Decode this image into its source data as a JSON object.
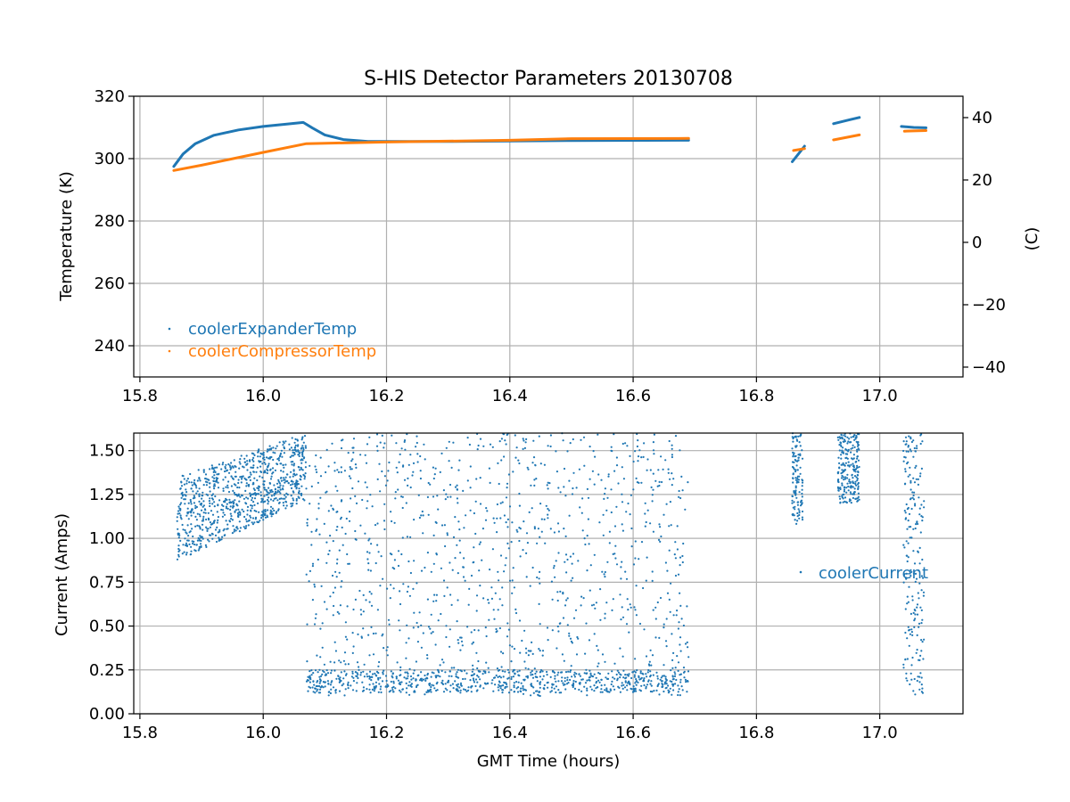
{
  "chart_data": [
    {
      "type": "scatter",
      "title": "S-HIS Detector Parameters 20130708",
      "xlabel": "",
      "ylabel": "Temperature (K)",
      "y2label": "(C)",
      "xlim": [
        15.79,
        17.135
      ],
      "ylim": [
        230,
        320
      ],
      "y2lim": [
        -43.15,
        46.85
      ],
      "xticks": [
        15.8,
        16.0,
        16.2,
        16.4,
        16.6,
        16.8,
        17.0
      ],
      "xtick_labels": [
        "15.8",
        "16.0",
        "16.2",
        "16.4",
        "16.6",
        "16.8",
        "17.0"
      ],
      "yticks": [
        240,
        260,
        280,
        300,
        320
      ],
      "ytick_labels": [
        "240",
        "260",
        "280",
        "300",
        "320"
      ],
      "y2ticks": [
        -40,
        -20,
        0,
        20,
        40
      ],
      "y2tick_labels": [
        "−40",
        "−20",
        "0",
        "20",
        "40"
      ],
      "grid": true,
      "legend": "lower-left",
      "series": [
        {
          "name": "coolerExpanderTemp",
          "color": "#1f77b4",
          "segments": [
            [
              [
                15.855,
                297.5
              ],
              [
                15.87,
                301.5
              ],
              [
                15.89,
                304.8
              ],
              [
                15.92,
                307.5
              ],
              [
                15.96,
                309.2
              ],
              [
                16.0,
                310.3
              ],
              [
                16.04,
                311.1
              ],
              [
                16.065,
                311.6
              ],
              [
                16.08,
                309.8
              ],
              [
                16.1,
                307.6
              ],
              [
                16.13,
                306.1
              ],
              [
                16.17,
                305.5
              ],
              [
                16.3,
                305.5
              ],
              [
                16.5,
                305.8
              ],
              [
                16.69,
                305.9
              ]
            ],
            [
              [
                16.858,
                299.0
              ],
              [
                16.868,
                301.5
              ],
              [
                16.878,
                304.0
              ]
            ],
            [
              [
                16.925,
                311.2
              ],
              [
                16.95,
                312.4
              ],
              [
                16.967,
                313.2
              ]
            ],
            [
              [
                17.035,
                310.3
              ],
              [
                17.055,
                310.0
              ],
              [
                17.075,
                309.9
              ]
            ]
          ]
        },
        {
          "name": "coolerCompressorTemp",
          "color": "#ff7f0e",
          "segments": [
            [
              [
                15.855,
                296.2
              ],
              [
                15.9,
                297.9
              ],
              [
                16.0,
                302.0
              ],
              [
                16.07,
                304.8
              ],
              [
                16.2,
                305.3
              ],
              [
                16.4,
                305.9
              ],
              [
                16.5,
                306.4
              ],
              [
                16.69,
                306.5
              ]
            ],
            [
              [
                16.86,
                302.6
              ],
              [
                16.878,
                303.2
              ]
            ],
            [
              [
                16.925,
                306.0
              ],
              [
                16.967,
                307.6
              ]
            ],
            [
              [
                17.04,
                308.8
              ],
              [
                17.075,
                309.0
              ]
            ]
          ]
        }
      ]
    },
    {
      "type": "scatter",
      "title": "",
      "xlabel": "GMT Time (hours)",
      "ylabel": "Current (Amps)",
      "xlim": [
        15.79,
        17.135
      ],
      "ylim": [
        0.0,
        1.6
      ],
      "xticks": [
        15.8,
        16.0,
        16.2,
        16.4,
        16.6,
        16.8,
        17.0
      ],
      "xtick_labels": [
        "15.8",
        "16.0",
        "16.2",
        "16.4",
        "16.6",
        "16.8",
        "17.0"
      ],
      "yticks": [
        0.0,
        0.25,
        0.5,
        0.75,
        1.0,
        1.25,
        1.5
      ],
      "ytick_labels": [
        "0.00",
        "0.25",
        "0.50",
        "0.75",
        "1.00",
        "1.25",
        "1.50"
      ],
      "grid": true,
      "legend": "center-right",
      "series": [
        {
          "name": "coolerCurrent",
          "color": "#1f77b4",
          "regions": [
            {
              "x": [
                15.86,
                16.07
              ],
              "y_low_start": 0.87,
              "y_low_end": 1.22,
              "y_high_start": 1.35,
              "y_high_end": 1.6,
              "count": 900
            },
            {
              "x": [
                16.07,
                16.69
              ],
              "y": [
                0.1,
                1.6
              ],
              "count": 1100
            },
            {
              "x": [
                16.07,
                16.69
              ],
              "y": [
                0.12,
                0.25
              ],
              "count": 700
            },
            {
              "x": [
                16.858,
                16.875
              ],
              "y": [
                1.08,
                1.6
              ],
              "count": 120
            },
            {
              "x": [
                16.932,
                16.967
              ],
              "y": [
                1.2,
                1.6
              ],
              "count": 220
            },
            {
              "x": [
                17.038,
                17.072
              ],
              "y": [
                0.1,
                1.6
              ],
              "count": 200
            }
          ]
        }
      ]
    }
  ]
}
